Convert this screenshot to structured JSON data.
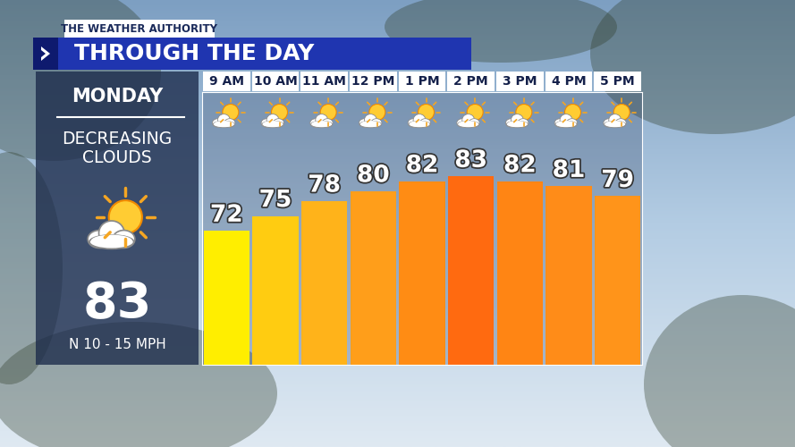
{
  "chart_data": {
    "type": "bar",
    "brand": "THE WEATHER AUTHORITY",
    "title": "THROUGH THE DAY",
    "day": "MONDAY",
    "conditions": "DECREASING\nCLOUDS",
    "high": 83,
    "wind": "N 10 - 15 MPH",
    "categories": [
      "9 AM",
      "10 AM",
      "11 AM",
      "12 PM",
      "1 PM",
      "2 PM",
      "3 PM",
      "4 PM",
      "5 PM"
    ],
    "values": [
      72,
      75,
      78,
      80,
      82,
      83,
      82,
      81,
      79
    ],
    "colors": [
      "#ffee00",
      "#ffcc11",
      "#ffb31a",
      "#ff9e1a",
      "#ff8c14",
      "#ff6a10",
      "#ff8514",
      "#ff8c18",
      "#ff941a"
    ],
    "ylim": [
      45,
      100
    ],
    "data_labels": true,
    "tick_labels": "x"
  }
}
